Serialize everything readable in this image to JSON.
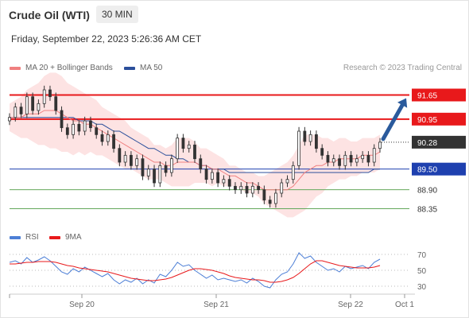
{
  "header": {
    "instrument": "Crude Oil (WTI)",
    "timeframe": "30 MIN",
    "datetime": "Friday, September 22, 2023 5:26:36 AM CET"
  },
  "legend": {
    "ma20": "MA 20 + Bollinger Bands",
    "ma50": "MA 50",
    "credit": "Research © 2023 Trading Central",
    "rsi": "RSI",
    "ma9": "9MA"
  },
  "colors": {
    "ma20": "#f08080",
    "ma50": "#2b4f9b",
    "bollinger": "#fcd9d9",
    "resistance": "#e8191b",
    "support": "#1e40af",
    "target_green": "#64a85c",
    "current": "#333333",
    "forecast_arrow": "#2a5a9c",
    "rsi": "#4d7fd6",
    "ma9": "#e8191b"
  },
  "chart_data": [
    {
      "type": "candlestick",
      "x_ticks": [
        "Sep 20",
        "Sep 21",
        "Sep 22",
        "Oct 1"
      ],
      "ylim": [
        87.9,
        92.1
      ],
      "levels": [
        {
          "value": 91.65,
          "label": "91.65",
          "kind": "resistance"
        },
        {
          "value": 90.95,
          "label": "90.95",
          "kind": "resistance"
        },
        {
          "value": 90.28,
          "label": "90.28",
          "kind": "current"
        },
        {
          "value": 89.5,
          "label": "89.50",
          "kind": "pivot"
        },
        {
          "value": 88.9,
          "label": "88.90",
          "kind": "support"
        },
        {
          "value": 88.35,
          "label": "88.35",
          "kind": "support"
        }
      ],
      "close": [
        91.0,
        91.3,
        91.1,
        91.6,
        91.2,
        91.4,
        91.8,
        91.6,
        91.2,
        90.7,
        90.5,
        90.8,
        90.6,
        90.9,
        90.7,
        90.5,
        90.3,
        90.5,
        90.1,
        89.7,
        89.9,
        89.6,
        89.8,
        89.3,
        89.5,
        89.1,
        89.6,
        89.4,
        89.8,
        90.4,
        90.1,
        90.2,
        89.8,
        89.5,
        89.2,
        89.4,
        89.1,
        89.2,
        89.0,
        88.9,
        89.0,
        88.8,
        89.0,
        88.9,
        88.6,
        88.5,
        88.8,
        89.1,
        89.2,
        89.6,
        90.6,
        90.3,
        90.5,
        90.1,
        89.9,
        89.7,
        89.8,
        89.6,
        89.9,
        89.7,
        89.8,
        89.9,
        89.7,
        90.1,
        90.28
      ],
      "ma20": [
        91.0,
        91.0,
        91.0,
        91.1,
        91.1,
        91.1,
        91.2,
        91.2,
        91.2,
        91.1,
        91.0,
        90.9,
        90.9,
        90.8,
        90.8,
        90.7,
        90.6,
        90.5,
        90.4,
        90.3,
        90.2,
        90.1,
        90.0,
        89.9,
        89.8,
        89.7,
        89.7,
        89.6,
        89.6,
        89.7,
        89.7,
        89.7,
        89.7,
        89.6,
        89.6,
        89.5,
        89.5,
        89.4,
        89.3,
        89.3,
        89.2,
        89.1,
        89.1,
        89.0,
        88.9,
        88.9,
        88.9,
        88.9,
        88.9,
        89.0,
        89.2,
        89.4,
        89.5,
        89.6,
        89.6,
        89.7,
        89.7,
        89.8,
        89.8,
        89.8,
        89.8,
        89.9,
        89.9,
        89.9,
        90.0
      ],
      "ma50": [
        91.0,
        91.0,
        91.0,
        91.0,
        91.0,
        91.0,
        91.0,
        91.0,
        91.0,
        91.0,
        91.0,
        91.0,
        90.9,
        90.9,
        90.9,
        90.8,
        90.8,
        90.7,
        90.6,
        90.6,
        90.5,
        90.4,
        90.3,
        90.2,
        90.1,
        90.1,
        90.0,
        89.9,
        89.9,
        89.8,
        89.8,
        89.7,
        89.7,
        89.6,
        89.6,
        89.5,
        89.5,
        89.5,
        89.4,
        89.4,
        89.4,
        89.4,
        89.4,
        89.4,
        89.4,
        89.4,
        89.4,
        89.4,
        89.4,
        89.4,
        89.4,
        89.4,
        89.4,
        89.4,
        89.4,
        89.4,
        89.4,
        89.4,
        89.4,
        89.4,
        89.4,
        89.4,
        89.4,
        89.5,
        89.5
      ],
      "bb_width": [
        0.4,
        0.5,
        0.6,
        0.7,
        0.8,
        0.9,
        1.0,
        1.1,
        1.1,
        1.1,
        1.0,
        1.0,
        0.9,
        0.9,
        0.8,
        0.8,
        0.7,
        0.7,
        0.7,
        0.7,
        0.7,
        0.6,
        0.6,
        0.6,
        0.6,
        0.5,
        0.5,
        0.5,
        0.6,
        0.7,
        0.7,
        0.7,
        0.6,
        0.5,
        0.5,
        0.5,
        0.4,
        0.4,
        0.3,
        0.3,
        0.3,
        0.3,
        0.3,
        0.3,
        0.4,
        0.5,
        0.6,
        0.7,
        0.8,
        0.9,
        1.0,
        1.1,
        1.0,
        0.9,
        0.8,
        0.7,
        0.6,
        0.6,
        0.6,
        0.5,
        0.5,
        0.5,
        0.5,
        0.5,
        0.5
      ],
      "forecast": {
        "from": 90.28,
        "to": 91.65
      }
    },
    {
      "type": "line",
      "name": "RSI",
      "ylim": [
        20,
        80
      ],
      "y_ticks": [
        70,
        50,
        30
      ],
      "rsi": [
        60,
        62,
        58,
        66,
        60,
        63,
        67,
        62,
        55,
        48,
        45,
        52,
        48,
        54,
        50,
        46,
        42,
        46,
        38,
        33,
        38,
        35,
        40,
        33,
        38,
        34,
        45,
        42,
        50,
        60,
        55,
        57,
        50,
        45,
        40,
        44,
        38,
        40,
        38,
        36,
        38,
        34,
        40,
        36,
        30,
        28,
        38,
        45,
        48,
        58,
        72,
        65,
        68,
        60,
        55,
        50,
        52,
        48,
        55,
        52,
        54,
        56,
        52,
        60,
        64
      ],
      "ma9": [
        58,
        58,
        59,
        60,
        60,
        61,
        61,
        61,
        60,
        58,
        56,
        55,
        53,
        52,
        51,
        50,
        49,
        48,
        46,
        44,
        42,
        40,
        39,
        38,
        37,
        37,
        38,
        39,
        41,
        44,
        47,
        50,
        52,
        52,
        51,
        50,
        48,
        46,
        43,
        41,
        40,
        39,
        38,
        38,
        37,
        35,
        35,
        36,
        38,
        41,
        46,
        52,
        58,
        62,
        62,
        60,
        58,
        56,
        55,
        54,
        53,
        53,
        53,
        54,
        56
      ]
    }
  ]
}
